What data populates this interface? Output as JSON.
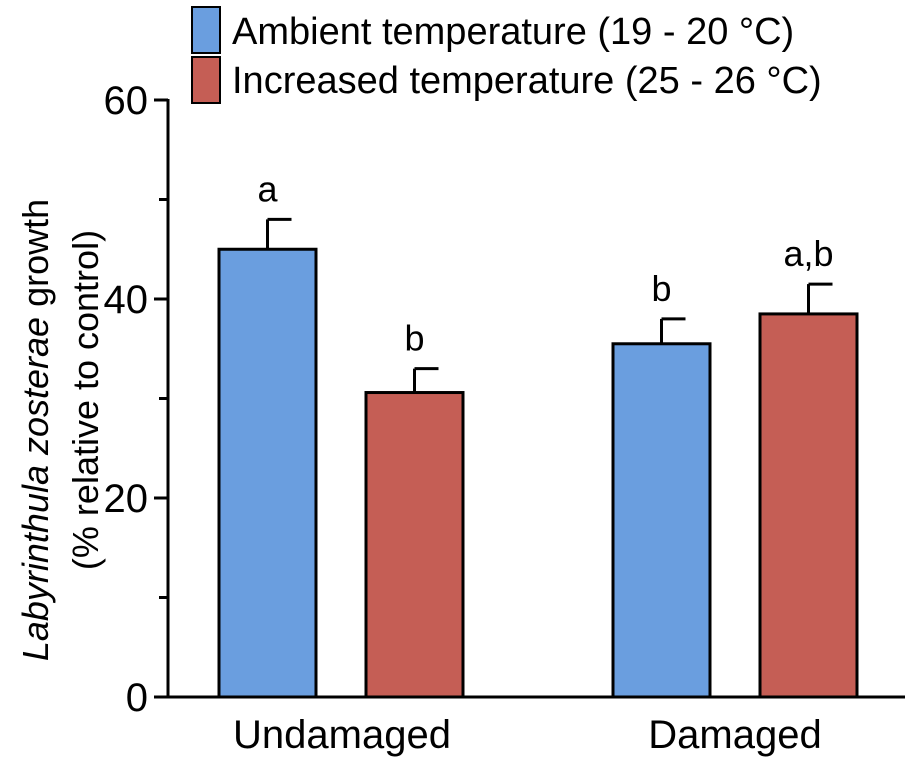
{
  "chart_data": {
    "type": "bar",
    "categories": [
      "Undamaged",
      "Damaged"
    ],
    "series": [
      {
        "name": "Ambient temperature (19 - 20 °C)",
        "color": "#6a9edf",
        "values": [
          45.0,
          35.5
        ],
        "errors": [
          3.0,
          2.5
        ],
        "significance": [
          "a",
          "b"
        ]
      },
      {
        "name": "Increased temperature (25 - 26 °C)",
        "color": "#c55e55",
        "values": [
          30.6,
          38.5
        ],
        "errors": [
          2.4,
          3.0
        ],
        "significance": [
          "b",
          "a,b"
        ]
      }
    ],
    "ylabel_line1_italic": "Labyrinthula zosterae",
    "ylabel_line1_rest": " growth",
    "ylabel_line2": "(% relative to control)",
    "ylim": [
      0,
      60
    ],
    "yticks": [
      0,
      20,
      40,
      60
    ],
    "legend_position": "top"
  }
}
